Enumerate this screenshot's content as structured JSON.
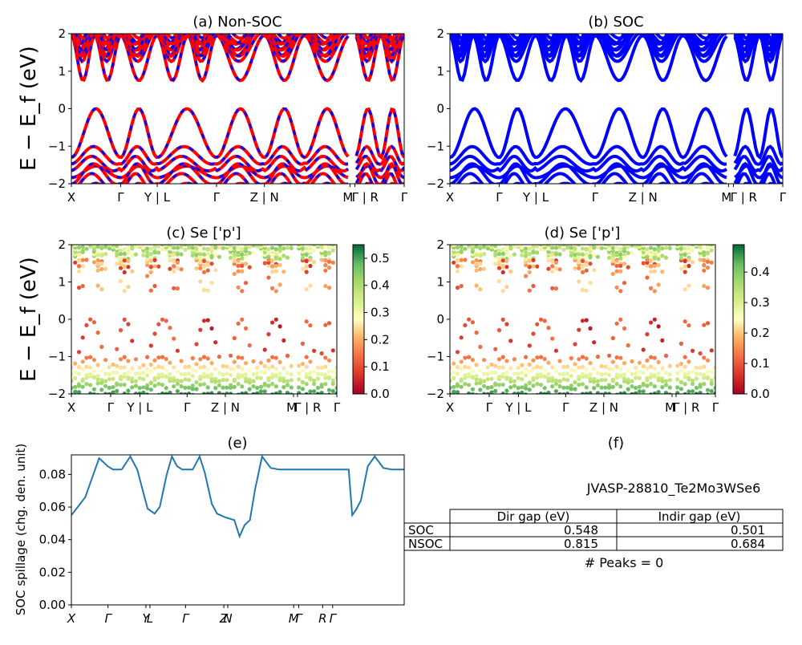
{
  "chart_data": [
    {
      "id": "a",
      "type": "line",
      "title": "(a) Non-SOC",
      "ylabel": "E − E_f (eV)",
      "ylim": [
        -2,
        2
      ],
      "yticks": [
        "2",
        "1",
        "0",
        "−1",
        "−2"
      ],
      "xticks": [
        "X",
        "Γ",
        "Y | L",
        "Γ",
        "Z | N",
        "M",
        "Γ | R",
        "Γ"
      ],
      "bands_note": "spin-resolved bands (red / blue)",
      "series": [
        {
          "color": "#ff0000"
        },
        {
          "color": "#0000ff"
        }
      ],
      "valence_max": 0.0,
      "conduction_min": 0.68
    },
    {
      "id": "b",
      "type": "line",
      "title": "(b) SOC",
      "ylim": [
        -2,
        2
      ],
      "yticks": [
        "2",
        "1",
        "0",
        "−1",
        "−2"
      ],
      "xticks": [
        "X",
        "Γ",
        "Y | L",
        "Γ",
        "Z | N",
        "M",
        "Γ | R",
        "Γ"
      ],
      "series": [
        {
          "color": "#0000ff"
        }
      ],
      "valence_max": 0.0,
      "conduction_min": 0.5
    },
    {
      "id": "c",
      "type": "scatter",
      "title": "(c)  Se ['p']",
      "ylabel": "E − E_f (eV)",
      "ylim": [
        -2,
        2
      ],
      "yticks": [
        "2",
        "1",
        "0",
        "−1",
        "−2"
      ],
      "xticks": [
        "X",
        "Γ",
        "Y | L",
        "Γ",
        "Z | N",
        "M",
        "Γ | R",
        "Γ"
      ],
      "colorbar": {
        "cmap": "RdYlGn",
        "min": 0.0,
        "max": 0.55,
        "ticks": [
          "0.5",
          "0.4",
          "0.3",
          "0.2",
          "0.1",
          "0.0"
        ]
      }
    },
    {
      "id": "d",
      "type": "scatter",
      "title": "(d) Se ['p']",
      "ylim": [
        -2,
        2
      ],
      "yticks": [
        "2",
        "1",
        "0",
        "−1",
        "−2"
      ],
      "xticks": [
        "X",
        "Γ",
        "Y | L",
        "Γ",
        "Z | N",
        "M",
        "Γ | R",
        "Γ"
      ],
      "colorbar": {
        "cmap": "RdYlGn",
        "min": 0.0,
        "max": 0.49,
        "ticks": [
          "0.4",
          "0.3",
          "0.2",
          "0.1",
          "0.0"
        ]
      }
    },
    {
      "id": "e",
      "type": "line",
      "title": "(e)",
      "ylabel": "SOC spillage (chg. den. unit)",
      "ylim": [
        0.0,
        0.092
      ],
      "yticks": [
        "0.08",
        "0.06",
        "0.04",
        "0.02",
        "0.00"
      ],
      "xticks": [
        "X",
        "Γ",
        "Y",
        "L",
        "Γ",
        "Z",
        "N",
        "M",
        "Γ",
        "R",
        "Γ"
      ],
      "series": [
        {
          "color": "#1f77b4"
        }
      ],
      "x": [
        0,
        0.4,
        0.8,
        1.05,
        1.2,
        1.3,
        1.45,
        1.7,
        1.9,
        2.05,
        2.2,
        2.4,
        2.55,
        2.75,
        2.9,
        3.05,
        3.2,
        3.35,
        3.5,
        3.7,
        3.85,
        4.05,
        4.2,
        4.4,
        4.55,
        4.7,
        4.85,
        5.0,
        5.15,
        5.3,
        5.5,
        5.75,
        6.0,
        6.2,
        6.4,
        6.7,
        7.0,
        7.4,
        7.7,
        8.0,
        8.1,
        8.2,
        8.35,
        8.55,
        8.75,
        9.0,
        9.25,
        9.6
      ],
      "values": [
        0.055,
        0.066,
        0.09,
        0.085,
        0.083,
        0.083,
        0.083,
        0.091,
        0.083,
        0.071,
        0.059,
        0.056,
        0.06,
        0.08,
        0.091,
        0.085,
        0.083,
        0.083,
        0.083,
        0.091,
        0.081,
        0.062,
        0.056,
        0.054,
        0.053,
        0.052,
        0.042,
        0.049,
        0.052,
        0.071,
        0.091,
        0.084,
        0.083,
        0.083,
        0.083,
        0.083,
        0.083,
        0.083,
        0.083,
        0.083,
        0.055,
        0.058,
        0.064,
        0.085,
        0.091,
        0.084,
        0.083,
        0.083
      ]
    },
    {
      "id": "f",
      "type": "table",
      "title": "(f)",
      "subtitle": "JVASP-28810_Te2Mo3WSe6",
      "columns": [
        "Dir gap (eV)",
        "Indir gap (eV)"
      ],
      "rows": [
        {
          "label": "SOC",
          "values": [
            "0.548",
            "0.501"
          ]
        },
        {
          "label": "NSOC",
          "values": [
            "0.815",
            "0.684"
          ]
        }
      ],
      "footnote": "# Peaks = 0"
    }
  ]
}
